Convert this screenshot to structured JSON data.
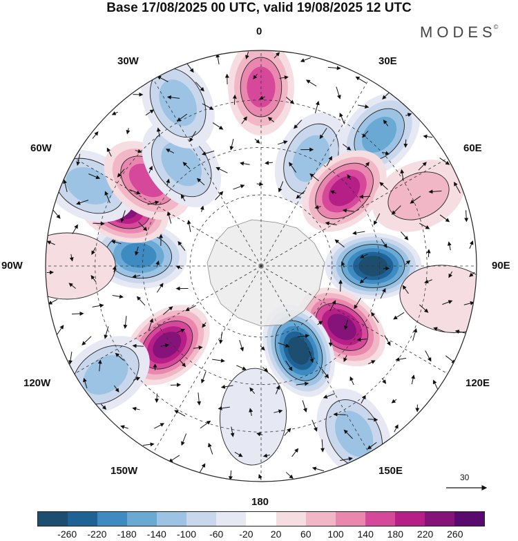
{
  "title": "Base 17/08/2025 00 UTC, valid 19/08/2025 12 UTC",
  "brand": {
    "name": "MODES",
    "mark": "©"
  },
  "longitude_labels": {
    "n": "0",
    "ne30": "30E",
    "ne60": "60E",
    "e": "90E",
    "se120": "120E",
    "se150": "150E",
    "s": "180",
    "sw150": "150W",
    "sw120": "120W",
    "w": "90W",
    "nw60": "60W",
    "nw30": "30W"
  },
  "reference_vector": {
    "label": "30"
  },
  "colorbar": {
    "colors": [
      "#1d4e6f",
      "#1f6396",
      "#3d8bc0",
      "#6aa9d4",
      "#9cc3e3",
      "#c8d7ec",
      "#e6e8f4",
      "#ffffff",
      "#f6dde2",
      "#f2b7c6",
      "#ea87ae",
      "#d6489a",
      "#b51f86",
      "#86137a",
      "#5a0a6e"
    ],
    "ticks": [
      "-260",
      "-220",
      "-180",
      "-140",
      "-100",
      "-60",
      "-20",
      "20",
      "60",
      "100",
      "140",
      "180",
      "220",
      "260"
    ]
  },
  "field": {
    "blobs": [
      {
        "lon": 0,
        "r": 0.83,
        "value": 170
      },
      {
        "lon": 25,
        "r": 0.55,
        "value": -110
      },
      {
        "lon": 42,
        "r": 0.82,
        "value": -150
      },
      {
        "lon": 48,
        "r": 0.52,
        "value": 180
      },
      {
        "lon": 66,
        "r": 0.8,
        "value": 60
      },
      {
        "lon": 90,
        "r": 0.52,
        "value": -260
      },
      {
        "lon": 127,
        "r": 0.47,
        "value": 240
      },
      {
        "lon": 151,
        "r": 0.89,
        "value": -120
      },
      {
        "lon": 156,
        "r": 0.43,
        "value": -260
      },
      {
        "lon": 183,
        "r": 0.7,
        "value": -40
      },
      {
        "lon": 230,
        "r": 0.57,
        "value": 250
      },
      {
        "lon": 235,
        "r": 0.88,
        "value": -110
      },
      {
        "lon": 275,
        "r": 0.57,
        "value": -200
      },
      {
        "lon": 293,
        "r": 0.7,
        "value": 240
      },
      {
        "lon": 295,
        "r": 0.88,
        "value": -120
      },
      {
        "lon": 307,
        "r": 0.66,
        "value": 170
      },
      {
        "lon": 322,
        "r": 0.6,
        "value": -130
      },
      {
        "lon": 333,
        "r": 0.85,
        "value": -110
      },
      {
        "lon": 270,
        "r": 0.9,
        "value": 50
      },
      {
        "lon": 100,
        "r": 0.88,
        "value": 40
      }
    ]
  }
}
